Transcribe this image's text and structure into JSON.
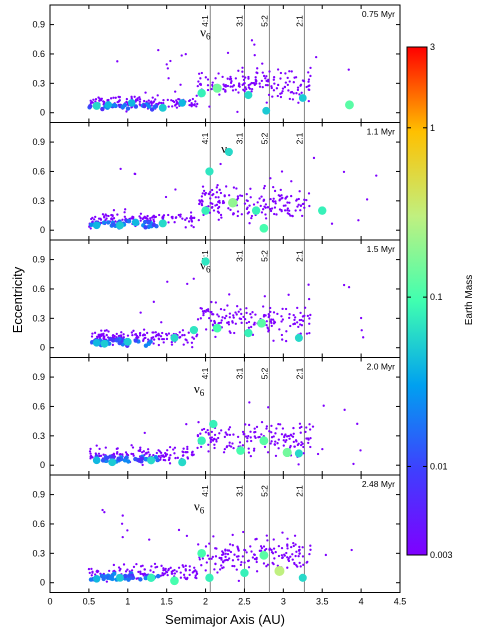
{
  "chart_data": {
    "type": "scatter",
    "xlabel": "Semimajor Axis (AU)",
    "ylabel": "Eccentricity",
    "xlim": [
      0,
      4.5
    ],
    "ylim": [
      -0.1,
      1.1
    ],
    "x_ticks": [
      "0",
      "0.5",
      "1",
      "1.5",
      "2",
      "2.5",
      "3",
      "3.5",
      "4",
      "4.5"
    ],
    "y_ticks": [
      "0",
      "0.3",
      "0.6",
      "0.9"
    ],
    "resonances": [
      {
        "label": "4:1",
        "a": 2.06
      },
      {
        "label": "3:1",
        "a": 2.5
      },
      {
        "label": "5:2",
        "a": 2.82
      },
      {
        "label": "2:1",
        "a": 3.27
      }
    ],
    "nu6_symbol": "ν",
    "nu6_sub": "6",
    "colorbar": {
      "title": "Earth Mass",
      "ticks": [
        "3",
        "1",
        "0.1",
        "0.01",
        "0.003"
      ],
      "tick_values": [
        3,
        1,
        0.1,
        0.01,
        0.003
      ],
      "scale": "log",
      "colors": [
        "#7f00ff",
        "#3f3ffe",
        "#00a0f0",
        "#40ffb0",
        "#c0f080",
        "#ffc000",
        "#ff0000"
      ]
    },
    "panels": [
      {
        "time": "0.75 Myr",
        "nu6_a": 1.93,
        "nu6_e": 0.78,
        "big_bodies": [
          [
            0.6,
            0.07,
            0.06
          ],
          [
            0.75,
            0.08,
            0.04
          ],
          [
            1.05,
            0.1,
            0.04
          ],
          [
            1.45,
            0.05,
            0.05
          ],
          [
            1.7,
            0.1,
            0.04
          ],
          [
            1.95,
            0.2,
            0.08
          ],
          [
            2.15,
            0.25,
            0.15
          ],
          [
            2.55,
            0.18,
            0.06
          ],
          [
            2.78,
            0.02,
            0.05
          ],
          [
            3.25,
            0.15,
            0.05
          ],
          [
            3.85,
            0.08,
            0.12
          ]
        ]
      },
      {
        "time": "1.1 Myr",
        "nu6_a": 2.2,
        "nu6_e": 0.79,
        "big_bodies": [
          [
            0.6,
            0.05,
            0.04
          ],
          [
            0.9,
            0.05,
            0.05
          ],
          [
            1.1,
            0.08,
            0.04
          ],
          [
            1.45,
            0.07,
            0.06
          ],
          [
            2.0,
            0.2,
            0.08
          ],
          [
            2.05,
            0.6,
            0.07
          ],
          [
            2.3,
            0.8,
            0.06
          ],
          [
            2.35,
            0.28,
            0.2
          ],
          [
            2.65,
            0.2,
            0.08
          ],
          [
            2.75,
            0.02,
            0.1
          ],
          [
            3.5,
            0.2,
            0.08
          ]
        ]
      },
      {
        "time": "1.5 Myr",
        "nu6_a": 1.93,
        "nu6_e": 0.8,
        "big_bodies": [
          [
            0.6,
            0.05,
            0.04
          ],
          [
            0.7,
            0.04,
            0.05
          ],
          [
            1.0,
            0.06,
            0.05
          ],
          [
            1.6,
            0.1,
            0.06
          ],
          [
            1.85,
            0.18,
            0.07
          ],
          [
            2.0,
            0.88,
            0.07
          ],
          [
            2.15,
            0.2,
            0.1
          ],
          [
            2.55,
            0.15,
            0.08
          ],
          [
            2.72,
            0.25,
            0.12
          ],
          [
            3.2,
            0.1,
            0.06
          ]
        ]
      },
      {
        "time": "2.0 Myr",
        "nu6_a": 1.85,
        "nu6_e": 0.74,
        "big_bodies": [
          [
            0.6,
            0.05,
            0.04
          ],
          [
            0.8,
            0.03,
            0.05
          ],
          [
            1.3,
            0.05,
            0.06
          ],
          [
            1.7,
            0.03,
            0.06
          ],
          [
            1.95,
            0.25,
            0.08
          ],
          [
            2.1,
            0.42,
            0.08
          ],
          [
            2.45,
            0.15,
            0.1
          ],
          [
            2.75,
            0.25,
            0.12
          ],
          [
            3.05,
            0.13,
            0.15
          ],
          [
            3.2,
            0.12,
            0.06
          ]
        ]
      },
      {
        "time": "2.48 Myr",
        "nu6_a": 1.85,
        "nu6_e": 0.74,
        "big_bodies": [
          [
            0.6,
            0.04,
            0.04
          ],
          [
            0.9,
            0.05,
            0.05
          ],
          [
            1.3,
            0.05,
            0.08
          ],
          [
            1.6,
            0.02,
            0.1
          ],
          [
            1.95,
            0.3,
            0.1
          ],
          [
            2.05,
            0.05,
            0.08
          ],
          [
            2.5,
            0.1,
            0.08
          ],
          [
            2.75,
            0.28,
            0.12
          ],
          [
            2.95,
            0.12,
            0.3
          ],
          [
            3.25,
            0.05,
            0.06
          ]
        ]
      }
    ],
    "small_body_mass": 0.003
  }
}
